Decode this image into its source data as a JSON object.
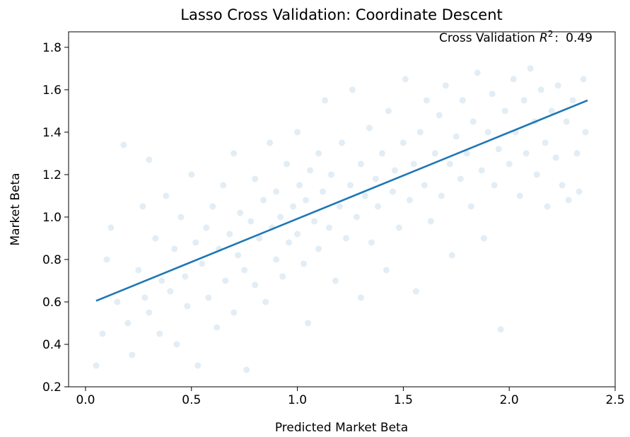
{
  "chart_data": {
    "type": "scatter",
    "title": "Lasso Cross Validation: Coordinate Descent",
    "x_label": "Predicted Market Beta",
    "y_label": "Market Beta",
    "annotation": {
      "label": "Cross Validation",
      "symbol": "R",
      "exponent": "2",
      "separator": ":",
      "value": 0.49
    },
    "xlim": [
      -0.08,
      2.5
    ],
    "ylim": [
      0.2,
      1.873
    ],
    "xticks": [
      {
        "value": 0,
        "label": "0.0"
      },
      0.5,
      {
        "value": 1,
        "label": "1.0"
      },
      1.5,
      {
        "value": 2,
        "label": "2.0"
      },
      2.5
    ],
    "yticks": [
      0.2,
      0.4,
      0.6,
      0.8,
      {
        "value": 1,
        "label": "1.0"
      },
      1.2,
      1.4,
      1.6,
      1.8
    ],
    "grid": false,
    "points": {
      "color": "#1f77b4",
      "x": [
        0.05,
        0.08,
        0.1,
        0.12,
        0.15,
        0.18,
        0.2,
        0.22,
        0.25,
        0.27,
        0.28,
        0.3,
        0.3,
        0.33,
        0.35,
        0.36,
        0.38,
        0.4,
        0.42,
        0.43,
        0.45,
        0.47,
        0.48,
        0.5,
        0.52,
        0.53,
        0.55,
        0.57,
        0.58,
        0.6,
        0.62,
        0.63,
        0.65,
        0.66,
        0.68,
        0.7,
        0.7,
        0.72,
        0.73,
        0.75,
        0.76,
        0.78,
        0.8,
        0.8,
        0.82,
        0.84,
        0.85,
        0.87,
        0.88,
        0.9,
        0.9,
        0.92,
        0.93,
        0.95,
        0.96,
        0.98,
        1.0,
        1.0,
        1.01,
        1.03,
        1.04,
        1.05,
        1.06,
        1.08,
        1.1,
        1.1,
        1.12,
        1.13,
        1.15,
        1.16,
        1.18,
        1.2,
        1.21,
        1.23,
        1.25,
        1.26,
        1.28,
        1.3,
        1.3,
        1.32,
        1.34,
        1.35,
        1.37,
        1.38,
        1.4,
        1.42,
        1.43,
        1.45,
        1.46,
        1.48,
        1.5,
        1.51,
        1.53,
        1.55,
        1.56,
        1.58,
        1.6,
        1.61,
        1.63,
        1.65,
        1.67,
        1.68,
        1.7,
        1.72,
        1.73,
        1.75,
        1.77,
        1.78,
        1.8,
        1.82,
        1.83,
        1.85,
        1.87,
        1.88,
        1.9,
        1.92,
        1.93,
        1.95,
        1.96,
        1.98,
        2.0,
        2.02,
        2.03,
        2.05,
        2.07,
        2.08,
        2.1,
        2.12,
        2.13,
        2.15,
        2.17,
        2.18,
        2.2,
        2.22,
        2.23,
        2.25,
        2.27,
        2.28,
        2.3,
        2.32,
        2.33,
        2.35,
        2.36
      ],
      "y": [
        0.3,
        0.45,
        0.8,
        0.95,
        0.6,
        1.34,
        0.5,
        0.35,
        0.75,
        1.05,
        0.62,
        0.55,
        1.27,
        0.9,
        0.45,
        0.7,
        1.1,
        0.65,
        0.85,
        0.4,
        1.0,
        0.72,
        0.58,
        1.2,
        0.88,
        0.3,
        0.78,
        0.95,
        0.62,
        1.05,
        0.48,
        0.85,
        1.15,
        0.7,
        0.92,
        1.3,
        0.55,
        0.82,
        1.02,
        0.75,
        0.28,
        0.98,
        1.18,
        0.68,
        0.9,
        1.08,
        0.6,
        1.35,
        0.95,
        0.8,
        1.12,
        1.0,
        0.72,
        1.25,
        0.88,
        1.05,
        1.4,
        0.92,
        1.15,
        0.78,
        1.08,
        0.5,
        1.22,
        0.98,
        1.3,
        0.85,
        1.12,
        1.55,
        0.95,
        1.2,
        0.7,
        1.05,
        1.35,
        0.9,
        1.15,
        1.6,
        1.0,
        1.25,
        0.62,
        1.1,
        1.42,
        0.88,
        1.18,
        1.05,
        1.3,
        0.75,
        1.5,
        1.12,
        1.22,
        0.95,
        1.35,
        1.65,
        1.08,
        1.25,
        0.65,
        1.4,
        1.15,
        1.55,
        0.98,
        1.3,
        1.48,
        1.1,
        1.62,
        1.25,
        0.82,
        1.38,
        1.18,
        1.55,
        1.3,
        1.05,
        1.45,
        1.68,
        1.22,
        0.9,
        1.4,
        1.58,
        1.15,
        1.32,
        0.47,
        1.5,
        1.25,
        1.65,
        1.4,
        1.1,
        1.55,
        1.3,
        1.7,
        1.45,
        1.2,
        1.6,
        1.35,
        1.05,
        1.5,
        1.28,
        1.62,
        1.15,
        1.45,
        1.08,
        1.55,
        1.3,
        1.12,
        1.65,
        1.4
      ]
    },
    "fit_line": {
      "color": "#1f77b4",
      "x": [
        0.05,
        2.37
      ],
      "y": [
        0.605,
        1.55
      ]
    }
  }
}
